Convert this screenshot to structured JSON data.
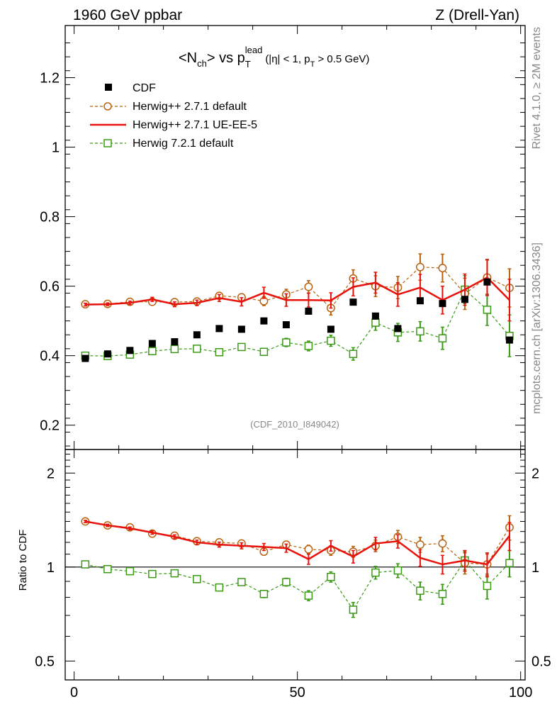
{
  "header": {
    "left": "1960 GeV ppbar",
    "right": "Z (Drell-Yan)"
  },
  "side": {
    "rivet": "Rivet 4.1.0, ≥ 2M events",
    "mcplots": "mcplots.cern.ch [arXiv:1306.3436]"
  },
  "title": {
    "lt": "<N",
    "ch": "ch",
    "mid": "> vs p",
    "T": "T",
    "lead": "lead",
    "cond_a": "(|η| < 1, p",
    "cond_T": "T",
    "cond_b": " > 0.5 GeV)"
  },
  "watermark": "(CDF_2010_I849042)",
  "ratio_ylabel": "Ratio to CDF",
  "legend": [
    {
      "key": "cdf",
      "label": "CDF",
      "color": "#000000"
    },
    {
      "key": "h271def",
      "label": "Herwig++ 2.7.1 default",
      "color": "#b8620e"
    },
    {
      "key": "h271ue",
      "label": "Herwig++ 2.7.1 UE-EE-5",
      "color": "#e8120c"
    },
    {
      "key": "h721",
      "label": "Herwig 7.2.1 default",
      "color": "#3a9a14"
    }
  ],
  "chart_data": {
    "type": "scatter",
    "x": [
      2.5,
      7.5,
      12.5,
      17.5,
      22.5,
      27.5,
      32.5,
      37.5,
      42.5,
      47.5,
      52.5,
      57.5,
      62.5,
      67.5,
      72.5,
      77.5,
      82.5,
      87.5,
      92.5,
      97.5
    ],
    "xlim": [
      -2,
      101
    ],
    "xticks": [
      "0",
      "50",
      "100"
    ],
    "xtick_values": [
      0,
      50,
      100
    ],
    "main": {
      "ylim": [
        0.13,
        1.35
      ],
      "yticks": [
        "0.2",
        "0.4",
        "0.6",
        "0.8",
        "1",
        "1.2"
      ],
      "ytick_values": [
        0.2,
        0.4,
        0.6,
        0.8,
        1.0,
        1.2
      ],
      "series": [
        {
          "key": "cdf",
          "name": "CDF",
          "style": "square-filled",
          "values": [
            0.392,
            0.405,
            0.415,
            0.435,
            0.44,
            0.46,
            0.478,
            0.476,
            0.5,
            0.489,
            0.528,
            0.476,
            0.554,
            0.514,
            0.478,
            0.558,
            0.55,
            0.562,
            0.612,
            0.445
          ],
          "errors": [
            0.003,
            0.003,
            0.003,
            0.003,
            0.003,
            0.003,
            0.003,
            0.003,
            0.003,
            0.003,
            0.003,
            0.003,
            0.003,
            0.003,
            0.003,
            0.003,
            0.003,
            0.003,
            0.003,
            0.003
          ]
        },
        {
          "key": "h271def",
          "name": "Herwig++ 2.7.1 default",
          "style": "circle-dashed",
          "values": [
            0.548,
            0.549,
            0.555,
            0.555,
            0.554,
            0.556,
            0.572,
            0.568,
            0.557,
            0.576,
            0.598,
            0.537,
            0.622,
            0.6,
            0.596,
            0.655,
            0.652,
            0.578,
            0.625,
            0.595
          ],
          "errors": [
            0.004,
            0.004,
            0.005,
            0.005,
            0.005,
            0.006,
            0.008,
            0.01,
            0.013,
            0.015,
            0.018,
            0.02,
            0.025,
            0.03,
            0.032,
            0.038,
            0.04,
            0.045,
            0.05,
            0.055
          ]
        },
        {
          "key": "h271ue",
          "name": "Herwig++ 2.7.1 UE-EE-5",
          "style": "solid",
          "values": [
            0.547,
            0.548,
            0.552,
            0.562,
            0.548,
            0.552,
            0.566,
            0.555,
            0.581,
            0.56,
            0.56,
            0.559,
            0.598,
            0.61,
            0.576,
            0.596,
            0.56,
            0.59,
            0.625,
            0.56
          ],
          "errors": [
            0.004,
            0.004,
            0.005,
            0.006,
            0.007,
            0.008,
            0.01,
            0.012,
            0.016,
            0.018,
            0.02,
            0.022,
            0.026,
            0.03,
            0.034,
            0.038,
            0.04,
            0.045,
            0.052,
            0.06
          ]
        },
        {
          "key": "h721",
          "name": "Herwig 7.2.1 default",
          "style": "square-open-dashed",
          "values": [
            0.4,
            0.399,
            0.403,
            0.413,
            0.419,
            0.42,
            0.41,
            0.425,
            0.411,
            0.438,
            0.428,
            0.443,
            0.405,
            0.495,
            0.467,
            0.47,
            0.45,
            0.59,
            0.532,
            0.457
          ],
          "errors": [
            0.003,
            0.003,
            0.004,
            0.005,
            0.006,
            0.007,
            0.007,
            0.009,
            0.01,
            0.012,
            0.014,
            0.016,
            0.018,
            0.022,
            0.026,
            0.028,
            0.032,
            0.04,
            0.045,
            0.06
          ]
        }
      ]
    },
    "ratio": {
      "ylim": [
        0.435,
        2.38
      ],
      "log": true,
      "yticks": [
        "0.5",
        "1",
        "2"
      ],
      "ytick_values": [
        0.5,
        1,
        2
      ],
      "series": [
        {
          "key": "h271def",
          "values": [
            1.4,
            1.36,
            1.34,
            1.28,
            1.26,
            1.21,
            1.2,
            1.19,
            1.12,
            1.18,
            1.14,
            1.13,
            1.12,
            1.17,
            1.25,
            1.18,
            1.19,
            1.03,
            1.02,
            1.34
          ],
          "errors": [
            0.012,
            0.012,
            0.014,
            0.014,
            0.014,
            0.016,
            0.02,
            0.022,
            0.028,
            0.03,
            0.035,
            0.04,
            0.045,
            0.05,
            0.06,
            0.065,
            0.07,
            0.08,
            0.08,
            0.12
          ]
        },
        {
          "key": "h271ue",
          "values": [
            1.4,
            1.36,
            1.33,
            1.29,
            1.25,
            1.2,
            1.18,
            1.17,
            1.16,
            1.15,
            1.06,
            1.17,
            1.08,
            1.19,
            1.21,
            1.07,
            1.02,
            1.05,
            1.02,
            1.26
          ],
          "errors": [
            0.012,
            0.012,
            0.014,
            0.016,
            0.018,
            0.02,
            0.022,
            0.026,
            0.03,
            0.035,
            0.04,
            0.045,
            0.05,
            0.055,
            0.06,
            0.065,
            0.07,
            0.08,
            0.09,
            0.13
          ]
        },
        {
          "key": "h721",
          "values": [
            1.02,
            0.985,
            0.97,
            0.95,
            0.955,
            0.915,
            0.86,
            0.895,
            0.82,
            0.895,
            0.81,
            0.93,
            0.73,
            0.96,
            0.975,
            0.84,
            0.82,
            1.05,
            0.87,
            1.03
          ],
          "errors": [
            0.01,
            0.01,
            0.012,
            0.012,
            0.014,
            0.016,
            0.018,
            0.02,
            0.022,
            0.026,
            0.03,
            0.035,
            0.04,
            0.045,
            0.05,
            0.055,
            0.06,
            0.07,
            0.08,
            0.1
          ]
        }
      ]
    }
  }
}
